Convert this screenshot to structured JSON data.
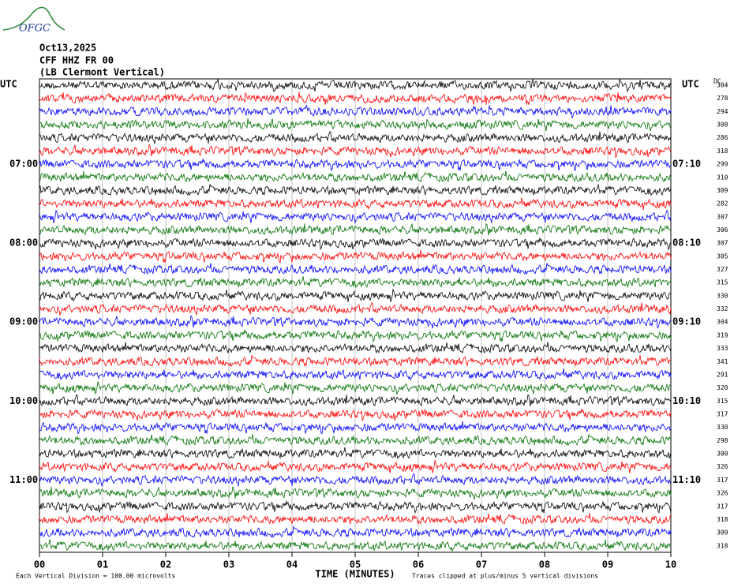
{
  "header": {
    "logo": "OFGC",
    "date": "Oct13,2025",
    "station": "CFF HHZ FR 00",
    "location": "(LB  Clermont Vertical)"
  },
  "left_label": "UTC",
  "right_label": "UTC",
  "dc_label": "DC",
  "left_times": [
    "07:00",
    "08:00",
    "09:00",
    "10:00",
    "11:00"
  ],
  "right_times": [
    "07:10",
    "08:10",
    "09:10",
    "10:10",
    "11:10"
  ],
  "dc_values": [
    304,
    278,
    294,
    308,
    286,
    318,
    299,
    310,
    309,
    282,
    307,
    306,
    307,
    305,
    327,
    315,
    330,
    332,
    304,
    319,
    333,
    341,
    291,
    320,
    315,
    317,
    330,
    298,
    300,
    326,
    317,
    326,
    317,
    318,
    309,
    318
  ],
  "trace_colors": [
    "#000000",
    "#ff0000",
    "#0000ff",
    "#007000"
  ],
  "x_ticks": [
    "00",
    "01",
    "02",
    "03",
    "04",
    "05",
    "06",
    "07",
    "08",
    "09",
    "10"
  ],
  "x_label": "TIME (MINUTES)",
  "footer_left": "Each Vertical Division =  100.00 microvolts",
  "footer_right": "Traces clipped at plus/minus 5 vertical divisions"
}
